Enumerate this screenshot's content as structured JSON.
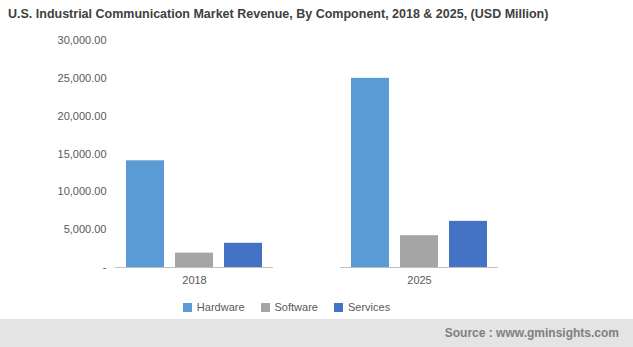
{
  "chart_data": {
    "type": "bar",
    "title": "U.S. Industrial Communication Market Revenue, By Component, 2018 & 2025, (USD Million)",
    "categories": [
      "2018",
      "2025"
    ],
    "series": [
      {
        "name": "Hardware",
        "color": "#5b9bd5",
        "values": [
          14100,
          25000
        ]
      },
      {
        "name": "Software",
        "color": "#a5a5a5",
        "values": [
          1900,
          4200
        ]
      },
      {
        "name": "Services",
        "color": "#4472c4",
        "values": [
          3200,
          6100
        ]
      }
    ],
    "ylim": [
      0,
      30000
    ],
    "yticks": [
      {
        "value": 0,
        "label": "-"
      },
      {
        "value": 5000,
        "label": "5,000.00"
      },
      {
        "value": 10000,
        "label": "10,000.00"
      },
      {
        "value": 15000,
        "label": "15,000.00"
      },
      {
        "value": 20000,
        "label": "20,000.00"
      },
      {
        "value": 25000,
        "label": "25,000.00"
      },
      {
        "value": 30000,
        "label": "30,000.00"
      }
    ],
    "grid": false,
    "legend": "bottom",
    "source": "Source : www.gminsights.com"
  }
}
